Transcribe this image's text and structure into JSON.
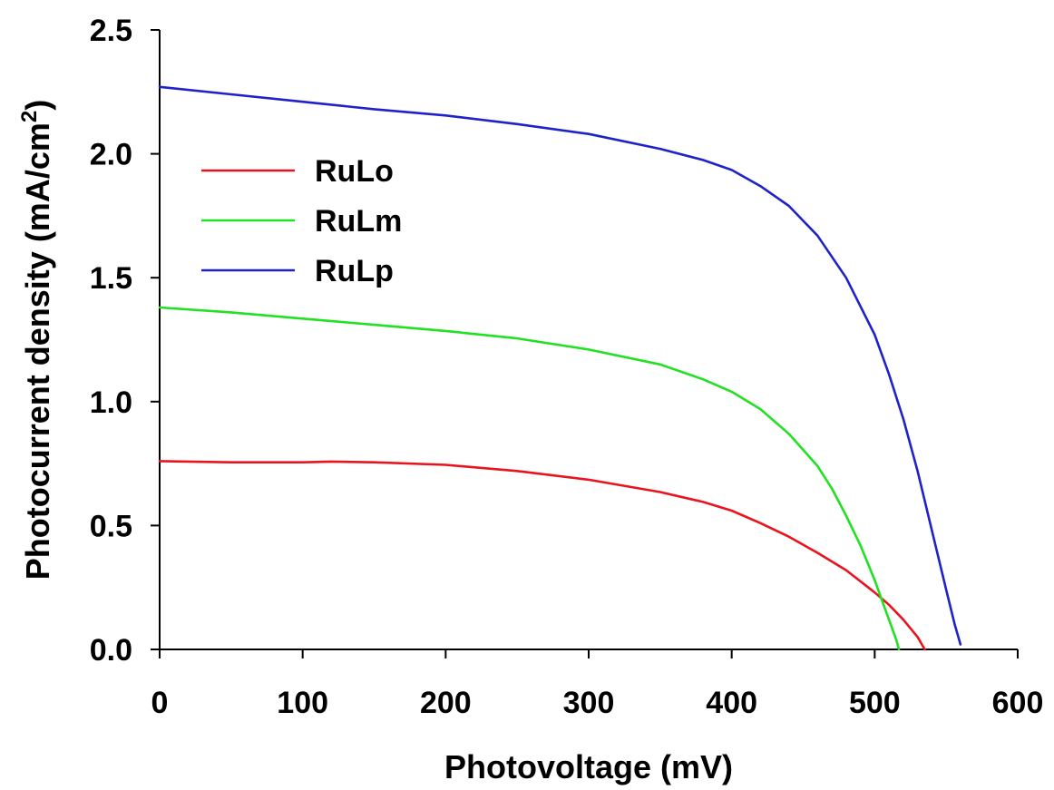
{
  "chart_data": {
    "type": "line",
    "xlabel": "Photovoltage (mV)",
    "ylabel": {
      "text": "Photocurrent density (mA/cm",
      "sup": "2",
      "close": ")"
    },
    "xlim": [
      0,
      600
    ],
    "ylim": [
      0,
      2.5
    ],
    "xticks": [
      0,
      100,
      200,
      300,
      400,
      500,
      600
    ],
    "yticks": [
      0.0,
      0.5,
      1.0,
      1.5,
      2.0,
      2.5
    ],
    "xtick_labels": [
      "0",
      "100",
      "200",
      "300",
      "400",
      "500",
      "600"
    ],
    "ytick_labels": [
      "0.0",
      "0.5",
      "1.0",
      "1.5",
      "2.0",
      "2.5"
    ],
    "grid": false,
    "legend": {
      "placement": "upper-left"
    },
    "series": [
      {
        "name": "RuLo",
        "color": "#e8141e",
        "x": [
          0,
          50,
          100,
          120,
          150,
          200,
          250,
          300,
          350,
          380,
          400,
          420,
          440,
          460,
          480,
          500,
          510,
          520,
          530,
          535
        ],
        "y": [
          0.76,
          0.755,
          0.755,
          0.758,
          0.755,
          0.745,
          0.72,
          0.685,
          0.635,
          0.595,
          0.56,
          0.51,
          0.455,
          0.39,
          0.32,
          0.23,
          0.18,
          0.12,
          0.05,
          0.0
        ]
      },
      {
        "name": "RuLm",
        "color": "#22e022",
        "x": [
          0,
          50,
          100,
          150,
          200,
          250,
          300,
          350,
          380,
          400,
          420,
          440,
          460,
          470,
          480,
          490,
          500,
          505,
          510,
          515,
          517
        ],
        "y": [
          1.38,
          1.36,
          1.335,
          1.31,
          1.285,
          1.255,
          1.21,
          1.15,
          1.09,
          1.04,
          0.97,
          0.87,
          0.74,
          0.65,
          0.54,
          0.42,
          0.28,
          0.2,
          0.12,
          0.04,
          0.0
        ]
      },
      {
        "name": "RuLp",
        "color": "#1f22c8",
        "x": [
          0,
          50,
          100,
          150,
          200,
          250,
          300,
          350,
          380,
          400,
          420,
          440,
          460,
          480,
          500,
          510,
          520,
          530,
          540,
          550,
          556,
          560
        ],
        "y": [
          2.27,
          2.24,
          2.21,
          2.18,
          2.155,
          2.12,
          2.08,
          2.02,
          1.975,
          1.935,
          1.87,
          1.79,
          1.67,
          1.5,
          1.27,
          1.11,
          0.93,
          0.72,
          0.48,
          0.24,
          0.1,
          0.02
        ]
      }
    ]
  }
}
